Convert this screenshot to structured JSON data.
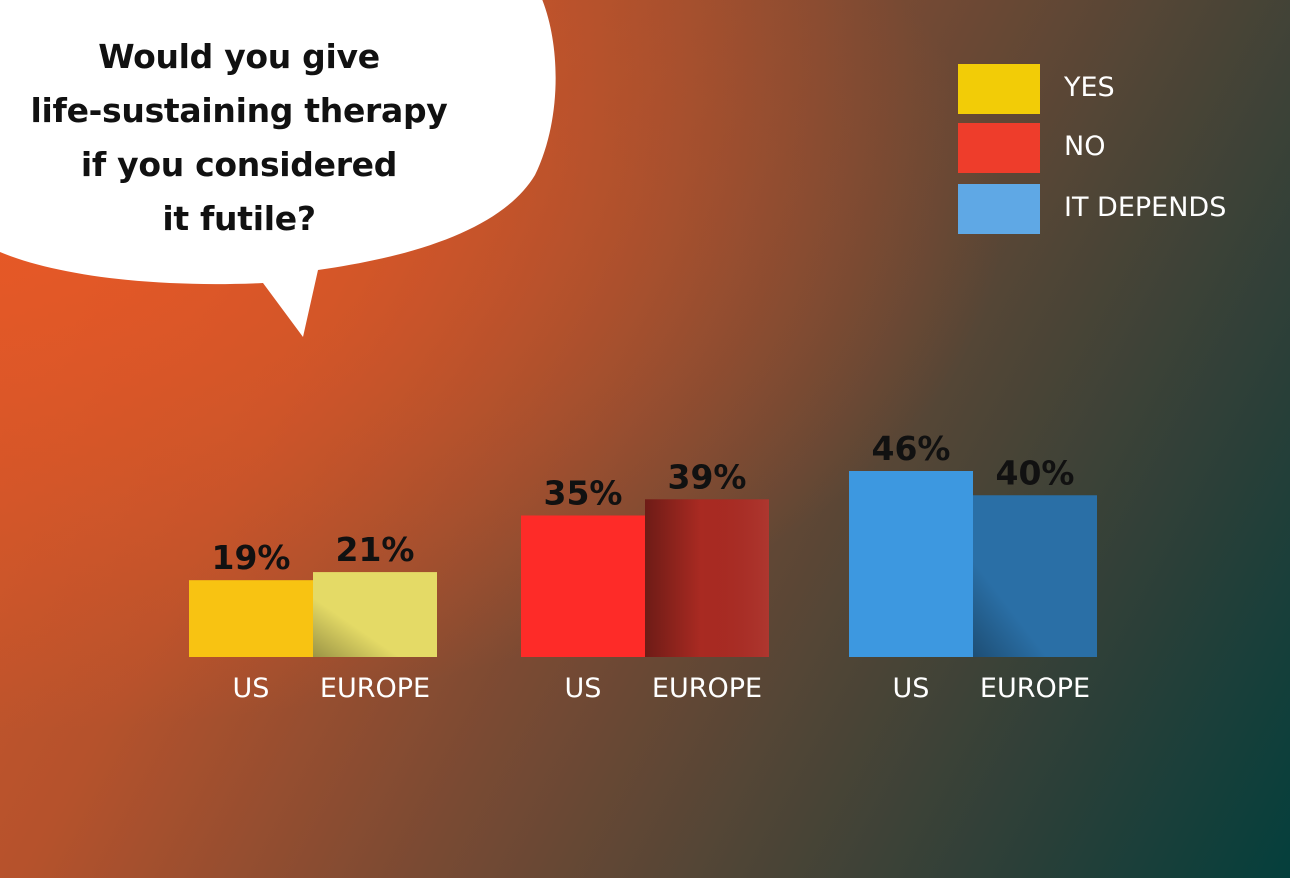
{
  "question": {
    "lines": [
      "Would you give",
      "life-sustaining therapy",
      "if you considered",
      "it futile?"
    ]
  },
  "legend": [
    {
      "label": "YES",
      "color": "#f2cc07"
    },
    {
      "label": "NO",
      "color": "#ee3d2b"
    },
    {
      "label": "IT DEPENDS",
      "color": "#5fa8e5"
    }
  ],
  "chart_data": {
    "type": "bar",
    "categories": [
      "US",
      "EUROPE"
    ],
    "series": [
      {
        "name": "YES",
        "values": [
          19,
          21
        ],
        "labels": [
          "19%",
          "21%"
        ],
        "colors": [
          "#f8c312",
          "#e4da66"
        ]
      },
      {
        "name": "NO",
        "values": [
          35,
          39
        ],
        "labels": [
          "35%",
          "39%"
        ],
        "colors": [
          "#fe2b28",
          "#a92a22"
        ]
      },
      {
        "name": "IT DEPENDS",
        "values": [
          46,
          40
        ],
        "labels": [
          "46%",
          "40%"
        ],
        "colors": [
          "#3d98e0",
          "#2a6fa6"
        ]
      }
    ],
    "ylim": [
      0,
      46
    ],
    "grid": false,
    "legend": "top-right"
  }
}
